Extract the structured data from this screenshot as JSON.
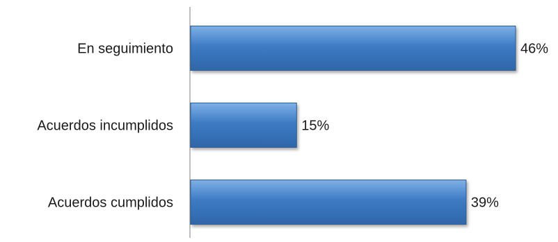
{
  "chart_data": {
    "type": "bar",
    "orientation": "horizontal",
    "categories": [
      "En seguimiento",
      "Acuerdos incumplidos",
      "Acuerdos cumplidos"
    ],
    "values": [
      46,
      15,
      39
    ],
    "value_labels": [
      "46%",
      "15%",
      "39%"
    ],
    "unit": "%",
    "xlim": [
      0,
      50
    ],
    "grid": false,
    "legend": "none",
    "bar_color": "#3d7bc4",
    "bar_color_light": "#6ea3dd",
    "bar_color_dark": "#2a5b96"
  }
}
